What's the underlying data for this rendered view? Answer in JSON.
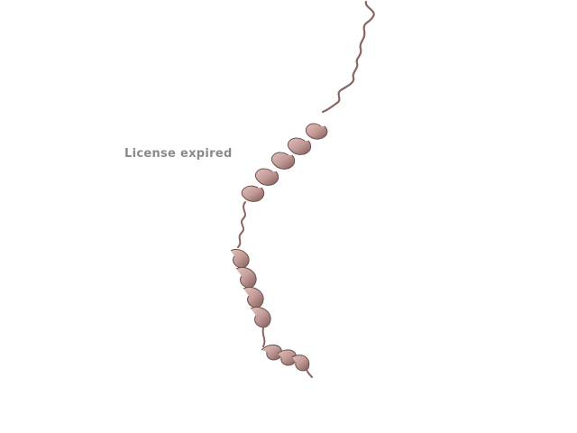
{
  "viewer": {
    "watermark_text": "License expired"
  },
  "structure": {
    "representation": "cartoon",
    "color": "#c9a39f"
  }
}
